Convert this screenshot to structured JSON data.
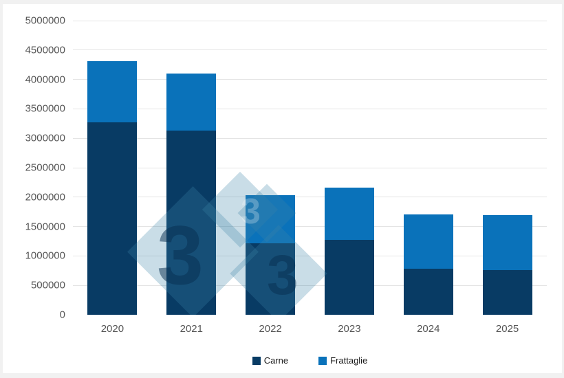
{
  "page": {
    "background": "#f1f1f1",
    "card_background": "#ffffff"
  },
  "chart_data": {
    "type": "bar",
    "stacked": true,
    "title": "",
    "categories": [
      "2020",
      "2021",
      "2022",
      "2023",
      "2024",
      "2025"
    ],
    "series": [
      {
        "name": "Carne",
        "color": "#083b64",
        "values": [
          3270000,
          3130000,
          1215000,
          1275000,
          785000,
          760000
        ]
      },
      {
        "name": "Frattaglie",
        "color": "#0a72ba",
        "values": [
          1040000,
          970000,
          820000,
          885000,
          920000,
          935000
        ]
      }
    ],
    "ylim": [
      0,
      5000000
    ],
    "ytick_step": 500000,
    "ytick_labels": [
      "5000000",
      "4500000",
      "4000000",
      "3500000",
      "3000000",
      "2500000",
      "2000000",
      "1500000",
      "1000000",
      "500000",
      "0"
    ],
    "grid": "horizontal",
    "gridline_color": "#e4e4e4",
    "axis_label_color": "#555555",
    "legend_position": "bottom"
  },
  "watermark": {
    "glyph": "3"
  }
}
